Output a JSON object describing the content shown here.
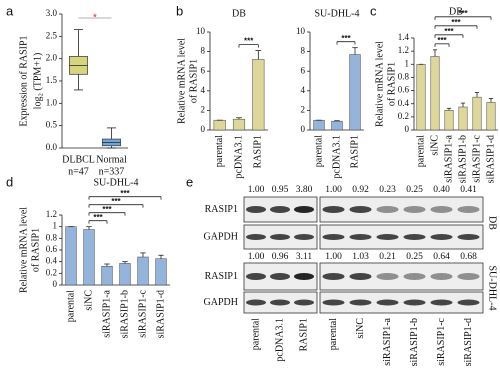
{
  "panels": [
    "a",
    "b",
    "c",
    "d",
    "e"
  ],
  "chart_data": [
    {
      "type": "box",
      "ylabel": [
        "Expression of RASIP1",
        "log₂ (TPM+1)"
      ],
      "categories": [
        "DLBCL",
        "Normal"
      ],
      "n_labels": [
        "n=47",
        "n=337"
      ],
      "colors": [
        "#d6d47e",
        "#6fa8d8"
      ],
      "stats": [
        {
          "min": 1.3,
          "q1": 1.65,
          "median": 1.85,
          "q3": 2.05,
          "max": 2.65
        },
        {
          "min": 0,
          "q1": 0.05,
          "median": 0.12,
          "q3": 0.2,
          "max": 0.45
        }
      ],
      "annotations": [
        "*"
      ],
      "ylim": [
        0,
        3
      ],
      "yticks": [
        {
          "value": 0,
          "label": "0.0"
        },
        0.5,
        {
          "value": 1,
          "label": "1.0"
        },
        1.5,
        {
          "value": 2,
          "label": "2.0"
        },
        2.5,
        {
          "value": 3,
          "label": "3.0"
        }
      ]
    },
    {
      "type": "bar",
      "title": "DB",
      "ylabel": [
        "Relative mRNA level",
        "of RASIP1"
      ],
      "categories": [
        "parental",
        "pcDNA3.1",
        "RASIP1"
      ],
      "values": [
        1,
        1.1,
        7.2
      ],
      "errors": [
        0,
        0.15,
        0.9
      ],
      "color": "#ddd89a",
      "annotations": [
        "***"
      ],
      "ylim": [
        0,
        10
      ],
      "yticks": [
        0,
        2,
        4,
        6,
        8,
        10
      ]
    },
    {
      "type": "bar",
      "title": "SU-DHL-4",
      "categories": [
        "parental",
        "pcDNA3.1",
        "RASIP1"
      ],
      "values": [
        1,
        0.9,
        7.7
      ],
      "errors": [
        0,
        0.05,
        0.7
      ],
      "color": "#94b4dc",
      "annotations": [
        "***"
      ],
      "ylim": [
        0,
        10
      ],
      "yticks": [
        0,
        2,
        4,
        6,
        8,
        10
      ]
    },
    {
      "type": "bar",
      "title": "DB",
      "ylabel": [
        "Relative mRNA level",
        "of RASIP1"
      ],
      "categories": [
        "parental",
        "siNC",
        "siRASIP1-a",
        "siRASIP1-b",
        "siRASIP1-c",
        "siRASIP1-d"
      ],
      "values": [
        1,
        1.12,
        0.3,
        0.35,
        0.5,
        0.42
      ],
      "errors": [
        0,
        0.1,
        0.03,
        0.06,
        0.07,
        0.06
      ],
      "color": "#ddd89a",
      "annotations": [
        "***",
        "***",
        "***",
        "***"
      ],
      "ylim": [
        0,
        1.4
      ],
      "yticks": [
        0,
        0.2,
        0.4,
        0.6,
        0.8,
        1,
        1.2,
        1.4
      ]
    },
    {
      "type": "bar",
      "title": "SU-DHL-4",
      "ylabel": [
        "Relative mRNA level",
        "of RASIP1"
      ],
      "categories": [
        "parental",
        "siNC",
        "siRASIP1-a",
        "siRASIP1-b",
        "siRASIP1-c",
        "siRASIP1-d"
      ],
      "values": [
        1,
        0.95,
        0.32,
        0.37,
        0.48,
        0.45
      ],
      "errors": [
        0,
        0.05,
        0.04,
        0.03,
        0.07,
        0.06
      ],
      "color": "#94b4dc",
      "annotations": [
        "***",
        "***",
        "***",
        "***"
      ],
      "ylim": [
        0,
        1.2
      ],
      "yticks": [
        0,
        0.2,
        0.4,
        0.6,
        0.8,
        1,
        1.2
      ]
    }
  ],
  "blot": {
    "lanes": [
      "parental",
      "pcDNA3.1",
      "RASIP1",
      "parental",
      "siNC",
      "siRASIP1-a",
      "siRASIP1-b",
      "siRASIP1-c",
      "siRASIP1-d"
    ],
    "groups": [
      {
        "label": "DB",
        "rows": [
          "RASIP1",
          "GAPDH"
        ],
        "values": [
          "1.00",
          "0.95",
          "3.80",
          "1.00",
          "0.92",
          "0.23",
          "0.25",
          "0.40",
          "0.41"
        ]
      },
      {
        "label": "SU-DHL-4",
        "rows": [
          "RASIP1",
          "GAPDH"
        ],
        "values": [
          "1.00",
          "0.96",
          "3.11",
          "1.00",
          "1.03",
          "0.21",
          "0.25",
          "0.64",
          "0.68"
        ]
      }
    ]
  }
}
